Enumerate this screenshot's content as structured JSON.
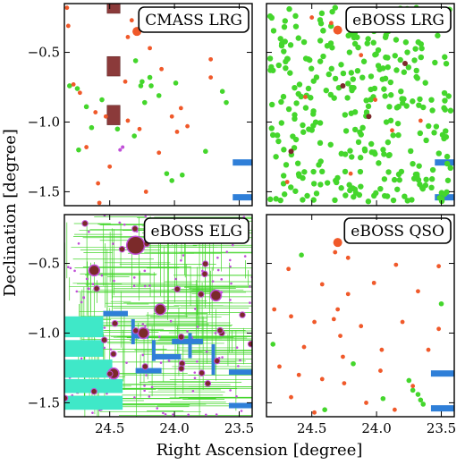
{
  "chart_data": {
    "type": "scatter",
    "xlabel": "Right Ascension [degree]",
    "ylabel": "Declination [degree]",
    "xlim": [
      24.85,
      23.4
    ],
    "ylim": [
      -1.6,
      -0.15
    ],
    "xticks": [
      24.5,
      24.0,
      23.5
    ],
    "xtick_labels": [
      "24.5",
      "24.0",
      "23.5"
    ],
    "yticks": [
      -0.5,
      -1.0,
      -1.5
    ],
    "ytick_labels": [
      "−0.5",
      "−1.0",
      "−1.5"
    ],
    "colors": {
      "green": "#44d62c",
      "orange": "#f0592a",
      "darkred": "#7b2a2a",
      "maroon_box": "#8b3a3a",
      "blue": "#2f7fd8",
      "magenta": "#c04fd8",
      "cyan": "#3fe8c8"
    },
    "panels": [
      {
        "label": "CMASS LRG",
        "mask_boxes": [
          [
            24.52,
            24.42,
            -0.15,
            -0.22
          ],
          [
            24.52,
            24.42,
            -0.53,
            -0.67
          ],
          [
            24.52,
            24.42,
            -0.88,
            -1.02
          ]
        ],
        "mask_strips": [
          [
            23.55,
            23.4,
            -1.29
          ],
          [
            23.55,
            23.4,
            -1.54
          ]
        ],
        "big": [
          [
            24.29,
            -0.35
          ]
        ],
        "orange": [
          [
            24.82,
            -0.31
          ],
          [
            24.73,
            -0.79
          ],
          [
            24.61,
            -0.93
          ],
          [
            24.78,
            -0.73
          ],
          [
            24.68,
            -1.18
          ],
          [
            24.5,
            -1.32
          ],
          [
            24.53,
            -0.96
          ],
          [
            24.36,
            -0.99
          ],
          [
            24.27,
            -1.05
          ],
          [
            24.19,
            -0.47
          ],
          [
            24.02,
            -0.96
          ],
          [
            23.95,
            -0.9
          ],
          [
            23.72,
            -0.55
          ],
          [
            23.72,
            -0.68
          ],
          [
            24.83,
            -0.18
          ],
          [
            24.59,
            -1.44
          ],
          [
            24.58,
            -1.58
          ],
          [
            24.22,
            -1.5
          ],
          [
            24.12,
            -1.22
          ],
          [
            23.98,
            -1.07
          ],
          [
            23.9,
            -1.03
          ],
          [
            24.38,
            -0.71
          ],
          [
            24.36,
            -0.39
          ],
          [
            24.33,
            -0.27
          ],
          [
            24.1,
            -0.62
          ]
        ],
        "green": [
          [
            24.81,
            -0.74
          ],
          [
            24.75,
            -0.76
          ],
          [
            24.56,
            -0.84
          ],
          [
            24.25,
            -0.71
          ],
          [
            24.19,
            -0.68
          ],
          [
            24.12,
            -0.81
          ],
          [
            23.99,
            -0.72
          ],
          [
            24.3,
            -0.56
          ],
          [
            24.26,
            -0.74
          ],
          [
            24.18,
            -0.74
          ],
          [
            24.23,
            -0.86
          ],
          [
            24.68,
            -0.89
          ],
          [
            24.64,
            -1.04
          ],
          [
            24.44,
            -1.05
          ],
          [
            24.31,
            -1.1
          ],
          [
            24.06,
            -1.37
          ],
          [
            24.02,
            -1.42
          ],
          [
            23.94,
            -1.38
          ],
          [
            23.76,
            -1.21
          ],
          [
            23.63,
            -0.78
          ],
          [
            23.6,
            -0.86
          ],
          [
            24.74,
            -1.2
          ]
        ],
        "magenta": [
          [
            24.42,
            -1.2
          ],
          [
            24.4,
            -1.18
          ]
        ]
      },
      {
        "label": "eBOSS LRG",
        "mask_strips": [
          [
            23.55,
            23.4,
            -1.29
          ],
          [
            23.55,
            23.4,
            -1.54
          ]
        ],
        "big": [
          [
            24.3,
            -0.34
          ]
        ],
        "darkred": [
          [
            24.26,
            -0.74
          ],
          [
            24.06,
            -0.96
          ],
          [
            23.78,
            -0.58
          ],
          [
            24.66,
            -1.21
          ]
        ],
        "orange": [
          [
            24.35,
            -0.29
          ],
          [
            24.55,
            -0.82
          ],
          [
            24.01,
            -0.84
          ],
          [
            23.88,
            -1.06
          ],
          [
            24.69,
            -1.43
          ],
          [
            24.2,
            -1.37
          ],
          [
            23.66,
            -0.99
          ],
          [
            24.5,
            -0.25
          ],
          [
            24.12,
            -0.52
          ]
        ]
      },
      {
        "label": "eBOSS ELG",
        "dense_mask": true,
        "big_circles": [
          [
            24.3,
            -0.37
          ],
          [
            24.11,
            -0.83
          ],
          [
            23.68,
            -0.73
          ],
          [
            24.62,
            -0.55
          ],
          [
            24.24,
            -1.0
          ],
          [
            24.47,
            -1.29
          ]
        ],
        "blue_bars": [
          [
            24.55,
            24.36,
            -0.86
          ],
          [
            24.32,
            24.2,
            -1.02
          ],
          [
            24.02,
            23.78,
            -1.06
          ],
          [
            24.15,
            23.95,
            -1.17
          ],
          [
            24.3,
            24.1,
            -1.27
          ],
          [
            23.58,
            23.4,
            -1.28
          ],
          [
            23.58,
            23.4,
            -1.52
          ]
        ],
        "cyan_blocks": [
          [
            24.85,
            24.55,
            -0.88,
            -1.03
          ],
          [
            24.85,
            24.55,
            -1.05,
            -1.17
          ],
          [
            24.85,
            24.48,
            -1.19,
            -1.32
          ],
          [
            24.85,
            24.4,
            -1.33,
            -1.43
          ],
          [
            24.85,
            24.4,
            -1.45,
            -1.55
          ]
        ]
      },
      {
        "label": "eBOSS QSO",
        "mask_strips": [
          [
            23.58,
            23.4,
            -1.29
          ],
          [
            23.58,
            23.4,
            -1.54
          ]
        ],
        "big": [
          [
            24.3,
            -0.35
          ]
        ],
        "orange": [
          [
            24.06,
            -0.19
          ],
          [
            23.62,
            -0.26
          ],
          [
            24.32,
            -0.42
          ],
          [
            23.52,
            -0.52
          ],
          [
            24.68,
            -0.54
          ],
          [
            23.85,
            -0.51
          ],
          [
            24.42,
            -0.65
          ],
          [
            24.22,
            -0.72
          ],
          [
            24.02,
            -0.64
          ],
          [
            23.68,
            -0.7
          ],
          [
            24.79,
            -0.83
          ],
          [
            24.66,
            -0.88
          ],
          [
            24.48,
            -0.92
          ],
          [
            24.33,
            -0.9
          ],
          [
            24.12,
            -0.95
          ],
          [
            23.8,
            -0.92
          ],
          [
            24.28,
            -1.02
          ],
          [
            24.56,
            -1.1
          ],
          [
            23.96,
            -1.12
          ],
          [
            24.26,
            -1.17
          ],
          [
            24.75,
            -1.24
          ],
          [
            24.6,
            -1.3
          ],
          [
            24.42,
            -1.33
          ],
          [
            24.25,
            -1.36
          ],
          [
            23.97,
            -1.27
          ],
          [
            23.72,
            -1.38
          ],
          [
            24.66,
            -1.46
          ],
          [
            24.48,
            -1.57
          ],
          [
            24.08,
            -1.5
          ],
          [
            23.86,
            -1.55
          ],
          [
            24.3,
            -0.83
          ],
          [
            23.6,
            -1.12
          ],
          [
            23.52,
            -0.97
          ],
          [
            24.22,
            -0.46
          ]
        ],
        "green": [
          [
            23.78,
            -0.22
          ],
          [
            23.7,
            -0.28
          ],
          [
            24.58,
            -0.44
          ],
          [
            23.5,
            -0.79
          ],
          [
            24.8,
            -1.08
          ],
          [
            23.75,
            -1.34
          ],
          [
            23.72,
            -1.41
          ],
          [
            23.68,
            -1.44
          ],
          [
            23.66,
            -1.48
          ],
          [
            23.64,
            -1.51
          ],
          [
            24.18,
            -1.22
          ],
          [
            23.95,
            -1.47
          ],
          [
            24.4,
            -1.55
          ]
        ]
      }
    ]
  }
}
